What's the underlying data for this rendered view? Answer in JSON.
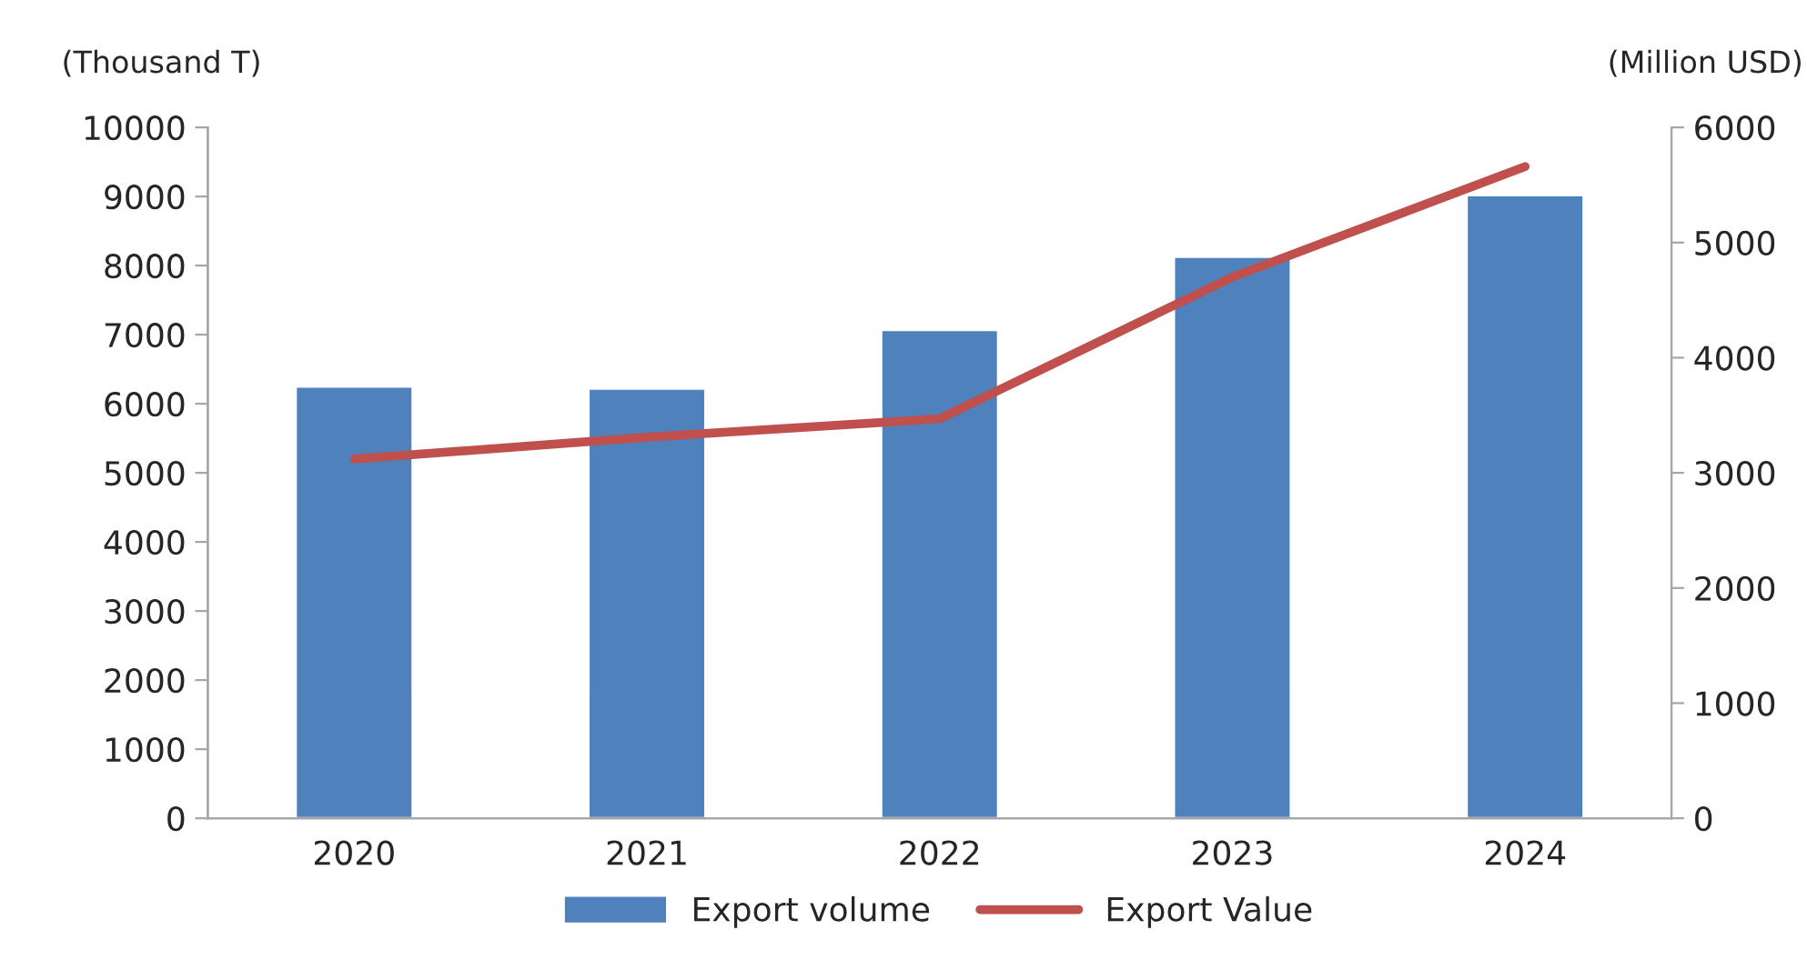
{
  "chart_data": {
    "type": "bar",
    "categories": [
      "2020",
      "2021",
      "2022",
      "2023",
      "2024"
    ],
    "ylabel": "(Thousand T)",
    "y2label": "(Million USD)",
    "series": [
      {
        "name": "Export volume",
        "color": "#4f81bd",
        "values": [
          6250,
          6220,
          7070,
          8130,
          9020
        ]
      },
      {
        "name": "Export Value",
        "type": "line",
        "axis": "y2",
        "color": "#c0504d",
        "values": [
          3120,
          3310,
          3470,
          4700,
          5660
        ],
        "marker": "none",
        "line_style": "solid"
      }
    ],
    "ylim": [
      0,
      10000
    ],
    "yticks": [
      0,
      1000,
      2000,
      3000,
      4000,
      5000,
      6000,
      7000,
      8000,
      9000,
      10000
    ],
    "y2lim": [
      0,
      6000
    ],
    "y2ticks": [
      0,
      1000,
      2000,
      3000,
      4000,
      5000,
      6000
    ],
    "grid": false,
    "legend": "bottom"
  }
}
